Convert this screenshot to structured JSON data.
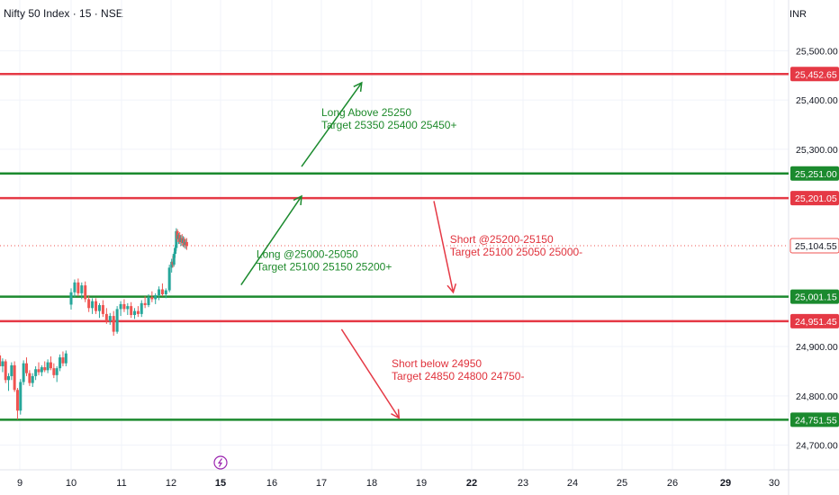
{
  "header": {
    "title": "Nifty 50 Index · 15 · NSE",
    "currency": "INR"
  },
  "colors": {
    "up": "#26a69a",
    "down": "#ef5350",
    "support": "#1b8a2e",
    "resistance": "#e53945",
    "long_text": "#1e8a2b",
    "short_text": "#e0323c",
    "last_price_line": "#ef5350",
    "axis_text": "#131722",
    "grid": "#f0f3fa",
    "event_icon": "#9c27b0"
  },
  "chart_data": {
    "type": "candlestick",
    "title": "Nifty 50 Index · 15 · NSE",
    "xlabel": "",
    "ylabel": "",
    "ylim": [
      24650,
      25570
    ],
    "y_ticks": [
      {
        "value": 25500,
        "label": "25,500.00"
      },
      {
        "value": 25400,
        "label": "25,400.00"
      },
      {
        "value": 25300,
        "label": "25,300.00"
      },
      {
        "value": 24900,
        "label": "24,900.00"
      },
      {
        "value": 24800,
        "label": "24,800.00"
      },
      {
        "value": 24700,
        "label": "24,700.00"
      }
    ],
    "x_ticks": [
      {
        "day": 9,
        "label": "9",
        "bold": false
      },
      {
        "day": 10,
        "label": "10",
        "bold": false
      },
      {
        "day": 11,
        "label": "11",
        "bold": false
      },
      {
        "day": 12,
        "label": "12",
        "bold": false
      },
      {
        "day": 15,
        "label": "15",
        "bold": true
      },
      {
        "day": 16,
        "label": "16",
        "bold": false
      },
      {
        "day": 17,
        "label": "17",
        "bold": false
      },
      {
        "day": 18,
        "label": "18",
        "bold": false
      },
      {
        "day": 19,
        "label": "19",
        "bold": false
      },
      {
        "day": 22,
        "label": "22",
        "bold": true
      },
      {
        "day": 23,
        "label": "23",
        "bold": false
      },
      {
        "day": 24,
        "label": "24",
        "bold": false
      },
      {
        "day": 25,
        "label": "25",
        "bold": false
      },
      {
        "day": 26,
        "label": "26",
        "bold": false
      },
      {
        "day": 29,
        "label": "29",
        "bold": true
      },
      {
        "day": 30,
        "label": "30",
        "bold": false
      }
    ],
    "levels": [
      {
        "value": 25452.65,
        "label": "25,452.65",
        "kind": "resistance"
      },
      {
        "value": 25251.0,
        "label": "25,251.00",
        "kind": "support"
      },
      {
        "value": 25201.05,
        "label": "25,201.05",
        "kind": "resistance"
      },
      {
        "value": 25001.15,
        "label": "25,001.15",
        "kind": "support"
      },
      {
        "value": 24951.45,
        "label": "24,951.45",
        "kind": "resistance"
      },
      {
        "value": 24751.55,
        "label": "24,751.55",
        "kind": "support"
      }
    ],
    "last_price": {
      "value": 25104.55,
      "label": "25,104.55"
    },
    "annotations": [
      {
        "lines": [
          "Long Above 25250",
          "Target 25350 25400 25450+"
        ],
        "kind": "long",
        "day": 17.0,
        "value": 25367
      },
      {
        "lines": [
          "Long @25000-25050",
          "Target 25100 25150 25200+"
        ],
        "kind": "long",
        "day": 15.7,
        "value": 25080
      },
      {
        "lines": [
          "Short @25200-25150",
          "Target 25100 25050 25000-"
        ],
        "kind": "short",
        "day": 20.7,
        "value": 25110
      },
      {
        "lines": [
          "Short below 24950",
          "Target 24850 24800 24750-"
        ],
        "kind": "short",
        "day": 18.4,
        "value": 24858
      }
    ],
    "arrows": [
      {
        "kind": "long",
        "from": [
          16.6,
          25265
        ],
        "to": [
          17.8,
          25435
        ]
      },
      {
        "kind": "long",
        "from": [
          15.4,
          25025
        ],
        "to": [
          16.6,
          25205
        ]
      },
      {
        "kind": "short",
        "from": [
          19.75,
          25195
        ],
        "to": [
          20.9,
          25010
        ]
      },
      {
        "kind": "short",
        "from": [
          17.4,
          24935
        ],
        "to": [
          18.55,
          24755
        ]
      }
    ],
    "candles": [
      [
        24882,
        24888,
        24852,
        24860
      ],
      [
        24860,
        24876,
        24848,
        24870
      ],
      [
        24870,
        24874,
        24826,
        24832
      ],
      [
        24832,
        24846,
        24810,
        24840
      ],
      [
        24840,
        24868,
        24832,
        24862
      ],
      [
        24862,
        24870,
        24808,
        24812
      ],
      [
        24812,
        24816,
        24752,
        24770
      ],
      [
        24770,
        24834,
        24762,
        24828
      ],
      [
        24828,
        24872,
        24822,
        24866
      ],
      [
        24866,
        24878,
        24840,
        24846
      ],
      [
        24846,
        24852,
        24820,
        24826
      ],
      [
        24826,
        24846,
        24818,
        24840
      ],
      [
        24840,
        24860,
        24832,
        24854
      ],
      [
        24854,
        24868,
        24842,
        24848
      ],
      [
        24848,
        24862,
        24840,
        24858
      ],
      [
        24858,
        24870,
        24848,
        24852
      ],
      [
        24852,
        24874,
        24846,
        24868
      ],
      [
        24868,
        24880,
        24852,
        24856
      ],
      [
        24856,
        24866,
        24836,
        24842
      ],
      [
        24842,
        24860,
        24828,
        24856
      ],
      [
        24856,
        24884,
        24850,
        24878
      ],
      [
        24878,
        24890,
        24860,
        24866
      ],
      [
        24866,
        24892,
        24860,
        24886
      ],
      [
        24985,
        25018,
        24975,
        25010
      ],
      [
        25010,
        25036,
        25000,
        25030
      ],
      [
        25030,
        25038,
        25002,
        25008
      ],
      [
        25008,
        25030,
        24996,
        25024
      ],
      [
        25024,
        25032,
        24990,
        24996
      ],
      [
        24996,
        25004,
        24970,
        24978
      ],
      [
        24978,
        24998,
        24966,
        24992
      ],
      [
        24992,
        24998,
        24966,
        24972
      ],
      [
        24972,
        24988,
        24958,
        24984
      ],
      [
        24984,
        24994,
        24960,
        24966
      ],
      [
        24966,
        24978,
        24946,
        24952
      ],
      [
        24952,
        24968,
        24944,
        24962
      ],
      [
        24962,
        24972,
        24922,
        24930
      ],
      [
        24930,
        24982,
        24926,
        24976
      ],
      [
        24976,
        24992,
        24962,
        24986
      ],
      [
        24986,
        24996,
        24970,
        24976
      ],
      [
        24976,
        24988,
        24964,
        24982
      ],
      [
        24982,
        24990,
        24958,
        24964
      ],
      [
        24964,
        24978,
        24956,
        24972
      ],
      [
        24972,
        24982,
        24960,
        24966
      ],
      [
        24966,
        24994,
        24960,
        24988
      ],
      [
        24988,
        25002,
        24978,
        24984
      ],
      [
        24984,
        25006,
        24980,
        25000
      ],
      [
        25000,
        25012,
        24990,
        24996
      ],
      [
        24996,
        25008,
        24986,
        25004
      ],
      [
        25004,
        25022,
        24994,
        25016
      ],
      [
        25016,
        25028,
        25002,
        25006
      ],
      [
        25006,
        25018,
        24998,
        25014
      ],
      [
        25014,
        25066,
        25010,
        25060
      ],
      [
        25060,
        25078,
        25050,
        25072
      ],
      [
        25072,
        25084,
        25060,
        25066
      ],
      [
        25066,
        25092,
        25062,
        25088
      ],
      [
        25088,
        25106,
        25080,
        25100
      ],
      [
        25100,
        25140,
        25094,
        25134
      ],
      [
        25134,
        25138,
        25112,
        25118
      ],
      [
        25118,
        25130,
        25108,
        25126
      ],
      [
        25126,
        25132,
        25108,
        25112
      ],
      [
        25112,
        25126,
        25104,
        25120
      ],
      [
        25120,
        25128,
        25104,
        25110
      ],
      [
        25110,
        25124,
        25102,
        25118
      ],
      [
        25118,
        25122,
        25100,
        25106
      ],
      [
        25106,
        25118,
        25098,
        25112
      ],
      [
        25112,
        25120,
        25096,
        25104
      ]
    ]
  }
}
